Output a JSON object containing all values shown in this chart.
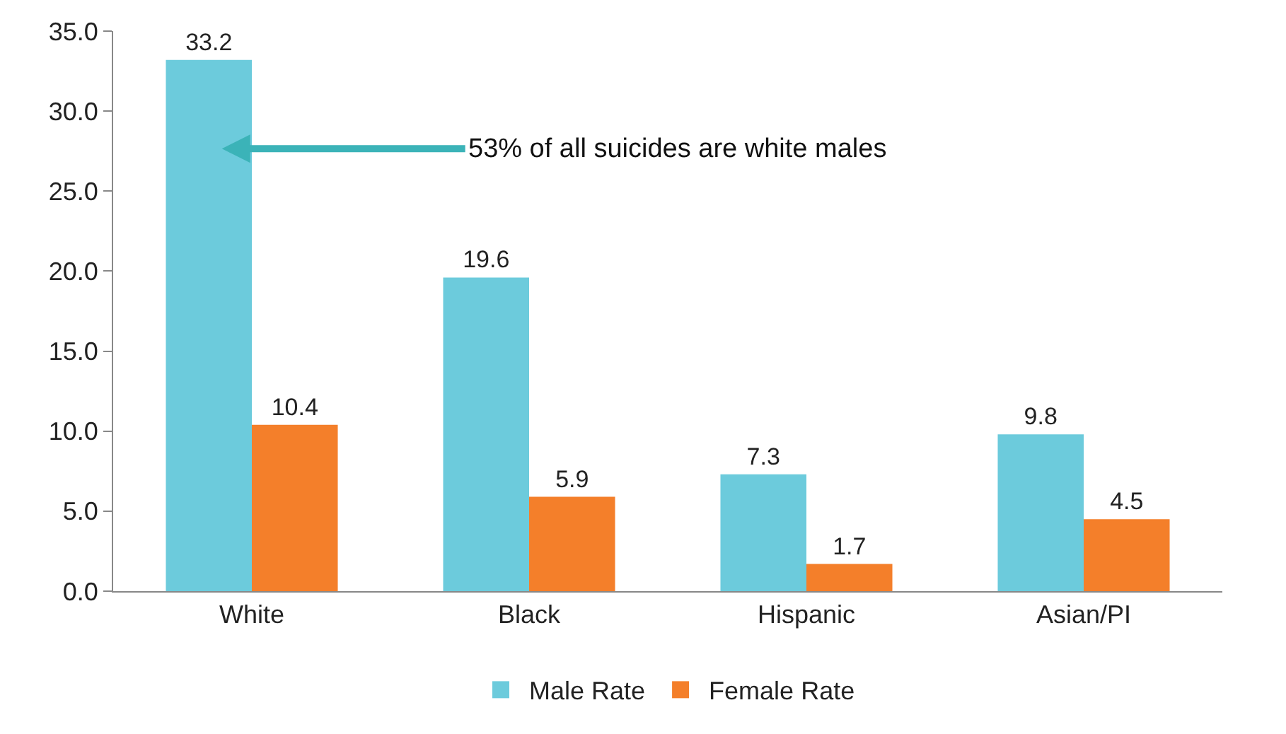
{
  "chart_data": {
    "type": "bar",
    "categories": [
      "White",
      "Black",
      "Hispanic",
      "Asian/PI"
    ],
    "series": [
      {
        "name": "Male Rate",
        "color": "#6ccbdc",
        "values": [
          33.2,
          19.6,
          7.3,
          9.8
        ]
      },
      {
        "name": "Female Rate",
        "color": "#f47f2a",
        "values": [
          10.4,
          5.9,
          1.7,
          4.5
        ]
      }
    ],
    "ylim": [
      0,
      35
    ],
    "yticks": [
      {
        "value": 0,
        "label": "0.0"
      },
      {
        "value": 5,
        "label": "5.0"
      },
      {
        "value": 10,
        "label": "10.0"
      },
      {
        "value": 15,
        "label": "15.0"
      },
      {
        "value": 20,
        "label": "20.0"
      },
      {
        "value": 25,
        "label": "25.0"
      },
      {
        "value": 30,
        "label": "30.0"
      },
      {
        "value": 35,
        "label": "35.0"
      }
    ],
    "annotations": [
      "53% of all suicides are white males"
    ],
    "data_labels": true,
    "legend": "bottom"
  }
}
